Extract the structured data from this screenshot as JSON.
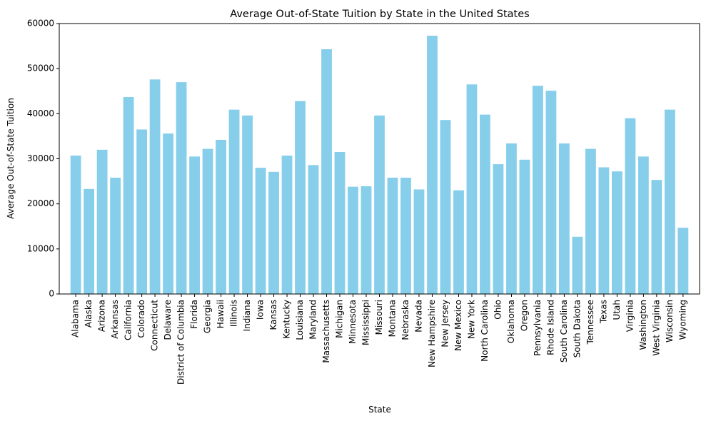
{
  "chart_data": {
    "type": "bar",
    "title": "Average Out-of-State Tuition by State in the United States",
    "xlabel": "State",
    "ylabel": "Average Out-of-State Tuition",
    "ylim": [
      0,
      60000
    ],
    "yticks": [
      0,
      10000,
      20000,
      30000,
      40000,
      50000,
      60000
    ],
    "grid": false,
    "bar_color": "#87ceeb",
    "categories": [
      "Alabama",
      "Alaska",
      "Arizona",
      "Arkansas",
      "California",
      "Colorado",
      "Connecticut",
      "Delaware",
      "District of Columbia",
      "Florida",
      "Georgia",
      "Hawaii",
      "Illinois",
      "Indiana",
      "Iowa",
      "Kansas",
      "Kentucky",
      "Louisiana",
      "Maryland",
      "Massachusetts",
      "Michigan",
      "Minnesota",
      "Mississippi",
      "Missouri",
      "Montana",
      "Nebraska",
      "Nevada",
      "New Hampshire",
      "New Jersey",
      "New Mexico",
      "New York",
      "North Carolina",
      "Ohio",
      "Oklahoma",
      "Oregon",
      "Pennsylvania",
      "Rhode Island",
      "South Carolina",
      "South Dakota",
      "Tennessee",
      "Texas",
      "Utah",
      "Virginia",
      "Washington",
      "West Virginia",
      "Wisconsin",
      "Wyoming"
    ],
    "values": [
      30700,
      23300,
      32000,
      25800,
      43700,
      36500,
      47600,
      35600,
      47000,
      30500,
      32200,
      34200,
      40900,
      39600,
      28000,
      27100,
      30700,
      42800,
      28600,
      54300,
      31500,
      23800,
      23900,
      39600,
      25800,
      25800,
      23200,
      57300,
      38600,
      23000,
      46500,
      39800,
      28800,
      33400,
      29800,
      46200,
      45100,
      33400,
      12700,
      32200,
      28100,
      27200,
      39000,
      30500,
      25300,
      40900,
      14700
    ]
  }
}
